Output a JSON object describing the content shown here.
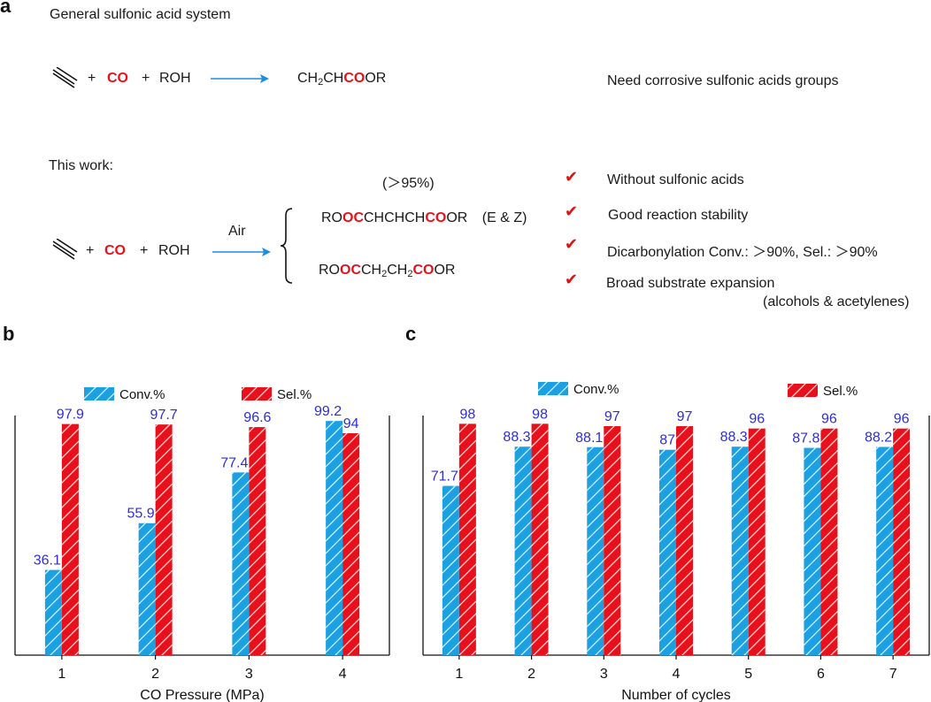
{
  "panel_a": {
    "letter": "a",
    "general_label": "General sulfonic acid system",
    "this_work_label": "This work:",
    "plus": "+",
    "co": "CO",
    "roh": "ROH",
    "product_general": {
      "p1": "CH",
      "s1": "2",
      "p2": "CH",
      "co": "CO",
      "p3": "OR"
    },
    "need_note": "Need corrosive sulfonic acids groups",
    "air_label": "Air",
    "yield_note": "(＞95%)",
    "product1": {
      "p1": "RO",
      "oc": "OC",
      "p2": "CHCHCH",
      "co": "CO",
      "p3": "OR",
      "ez": "(E & Z)"
    },
    "product2": {
      "p1": "RO",
      "oc": "OC",
      "p2": "CH",
      "s1": "2",
      "p3": "CH",
      "s2": "2",
      "co": "CO",
      "p4": "OR"
    },
    "check_glyph": "✔",
    "advantages": [
      "Without sulfonic acids",
      "Good reaction stability",
      "Dicarbonylation Conv.: ＞90%, Sel.: ＞90%",
      "Broad substrate expansion"
    ],
    "advantage_sub": "(alcohols & acetylenes)"
  },
  "chart_data": [
    {
      "panel": "b",
      "type": "bar",
      "xlabel": "CO Pressure (MPa)",
      "ylabel": "",
      "categories": [
        "1",
        "2",
        "3",
        "4"
      ],
      "ylim": [
        0,
        100
      ],
      "legend_position": "top",
      "series": [
        {
          "name": "Conv.%",
          "color": "#1ba1e2",
          "values": [
            36.1,
            55.9,
            77.4,
            99.2
          ],
          "labels": [
            "36.1",
            "55.9",
            "77.4",
            "99.2"
          ]
        },
        {
          "name": "Sel.%",
          "color": "#e8101a",
          "values": [
            97.9,
            97.7,
            96.6,
            94
          ],
          "labels": [
            "97.9",
            "97.7",
            "96.6",
            "94"
          ]
        }
      ],
      "label_color": "#2e2ed8"
    },
    {
      "panel": "c",
      "type": "bar",
      "xlabel": "Number of cycles",
      "ylabel": "",
      "categories": [
        "1",
        "2",
        "3",
        "4",
        "5",
        "6",
        "7"
      ],
      "ylim": [
        0,
        100
      ],
      "legend_position": "top",
      "series": [
        {
          "name": "Conv.%",
          "color": "#1ba1e2",
          "values": [
            71.7,
            88.3,
            88.1,
            87,
            88.3,
            87.8,
            88.2
          ],
          "labels": [
            "71.7",
            "88.3",
            "88.1",
            "87",
            "88.3",
            "87.8",
            "88.2"
          ]
        },
        {
          "name": "Sel.%",
          "color": "#e8101a",
          "values": [
            98,
            98,
            97,
            97,
            96,
            96,
            96
          ],
          "labels": [
            "98",
            "98",
            "97",
            "97",
            "96",
            "96",
            "96"
          ]
        }
      ],
      "label_color": "#2e2ed8"
    }
  ]
}
